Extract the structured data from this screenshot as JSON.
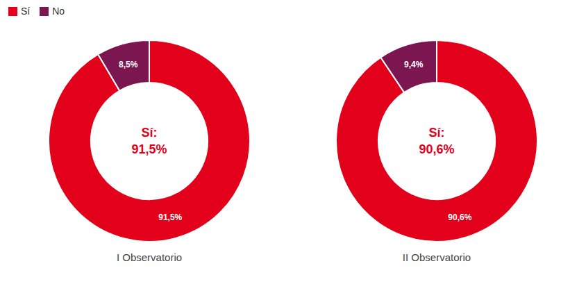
{
  "chart_data": [
    {
      "type": "donut",
      "title": "I Observatorio",
      "categories": [
        "Sí",
        "No"
      ],
      "values": [
        91.5,
        8.5
      ],
      "value_labels": [
        "91,5%",
        "8,5%"
      ],
      "colors": [
        "#E2001A",
        "#7B1650"
      ],
      "data_labels": true,
      "annotations": [
        "Sí:",
        "91,5%"
      ],
      "legend": "upper left"
    },
    {
      "type": "donut",
      "title": "II Observatorio",
      "categories": [
        "Sí",
        "No"
      ],
      "values": [
        90.6,
        9.4
      ],
      "value_labels": [
        "90,6%",
        "9,4%"
      ],
      "colors": [
        "#E2001A",
        "#7B1650"
      ],
      "data_labels": true,
      "annotations": [
        "Sí:",
        "90,6%"
      ]
    }
  ]
}
